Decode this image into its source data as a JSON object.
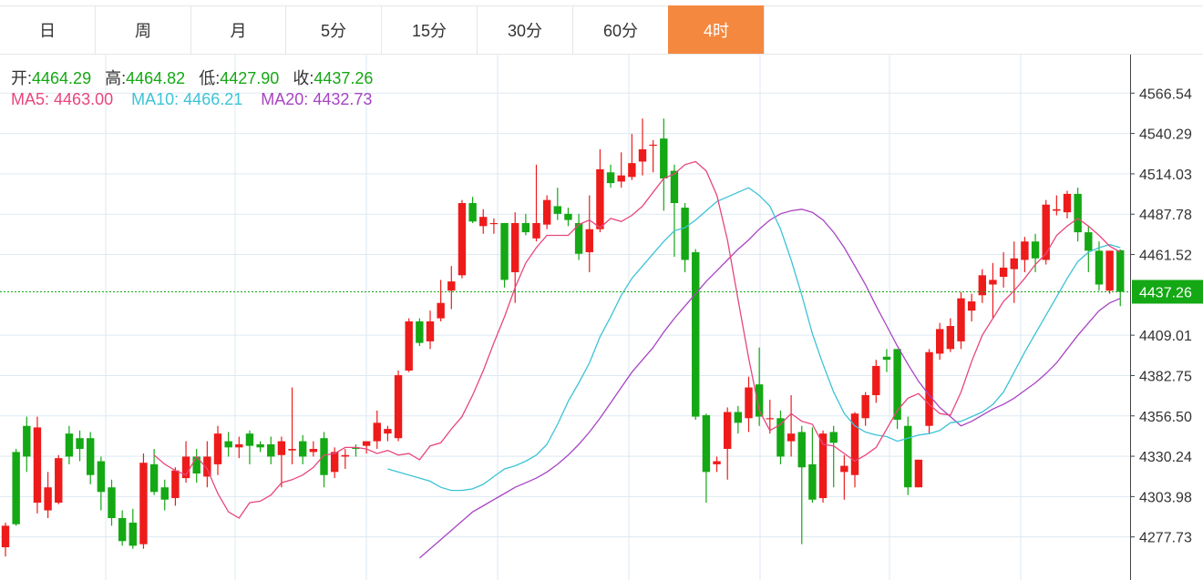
{
  "tabs": [
    {
      "label": "日",
      "active": false
    },
    {
      "label": "周",
      "active": false
    },
    {
      "label": "月",
      "active": false
    },
    {
      "label": "5分",
      "active": false
    },
    {
      "label": "15分",
      "active": false
    },
    {
      "label": "30分",
      "active": false
    },
    {
      "label": "60分",
      "active": false
    },
    {
      "label": "4时",
      "active": true
    }
  ],
  "ohlc_info": {
    "open_label": "开:",
    "open": "4464.29",
    "high_label": "高:",
    "high": "4464.82",
    "low_label": "低:",
    "low": "4427.90",
    "close_label": "收:",
    "close": "4437.26"
  },
  "ma_info": {
    "ma5_label": "MA5:",
    "ma5": "4463.00",
    "ma10_label": "MA10:",
    "ma10": "4466.21",
    "ma20_label": "MA20:",
    "ma20": "4432.73"
  },
  "colors": {
    "up": "#ee1b1b",
    "down": "#14a814",
    "ma5": "#e8467c",
    "ma10": "#3cc3d6",
    "ma20": "#a844c4",
    "accent": "#f4883f",
    "grid": "#dde9f3",
    "last_price": "#14a814"
  },
  "chart_data": {
    "type": "candlestick",
    "y_axis_ticks": [
      "4566.54",
      "4540.29",
      "4514.03",
      "4487.78",
      "4461.52",
      "4409.01",
      "4382.75",
      "4356.50",
      "4330.24",
      "4303.98",
      "4277.73"
    ],
    "last_price_label": "4437.26",
    "ylim": [
      4251.47,
      4592.79
    ],
    "grid": true,
    "candles": [
      [
        4271,
        4285,
        4265,
        4287
      ],
      [
        4333,
        4286,
        4285,
        4335
      ],
      [
        4350,
        4330,
        4320,
        4356
      ],
      [
        4300,
        4349,
        4293,
        4356
      ],
      [
        4295,
        4310,
        4290,
        4320
      ],
      [
        4300,
        4329,
        4299,
        4331
      ],
      [
        4345,
        4330,
        4325,
        4350
      ],
      [
        4342,
        4335,
        4327,
        4347
      ],
      [
        4342,
        4318,
        4312,
        4346
      ],
      [
        4327,
        4307,
        4295,
        4330
      ],
      [
        4310,
        4290,
        4285,
        4315
      ],
      [
        4290,
        4275,
        4272,
        4295
      ],
      [
        4287,
        4272,
        4270,
        4296
      ],
      [
        4273,
        4326,
        4270,
        4332
      ],
      [
        4325,
        4307,
        4305,
        4335
      ],
      [
        4310,
        4302,
        4295,
        4315
      ],
      [
        4303,
        4321,
        4298,
        4323
      ],
      [
        4316,
        4330,
        4313,
        4340
      ],
      [
        4330,
        4319,
        4313,
        4335
      ],
      [
        4317,
        4330,
        4310,
        4340
      ],
      [
        4325,
        4345,
        4318,
        4350
      ],
      [
        4340,
        4336,
        4330,
        4346
      ],
      [
        4336,
        4338,
        4329,
        4343
      ],
      [
        4345,
        4337,
        4325,
        4347
      ],
      [
        4338,
        4336,
        4333,
        4340
      ],
      [
        4338,
        4330,
        4325,
        4343
      ],
      [
        4331,
        4340,
        4310,
        4343
      ],
      [
        4334,
        4335,
        4325,
        4375
      ],
      [
        4340,
        4330,
        4325,
        4344
      ],
      [
        4333,
        4335,
        4330,
        4340
      ],
      [
        4342,
        4318,
        4310,
        4346
      ],
      [
        4320,
        4333,
        4316,
        4336
      ],
      [
        4330,
        4331,
        4322,
        4335
      ],
      [
        4336,
        4335,
        4330,
        4338
      ],
      [
        4337,
        4340,
        4332,
        4340
      ],
      [
        4340,
        4352,
        4335,
        4360
      ],
      [
        4345,
        4348,
        4340,
        4350
      ],
      [
        4342,
        4383,
        4340,
        4386
      ],
      [
        4386,
        4418,
        4385,
        4420
      ],
      [
        4418,
        4404,
        4402,
        4420
      ],
      [
        4405,
        4418,
        4400,
        4425
      ],
      [
        4420,
        4430,
        4418,
        4445
      ],
      [
        4438,
        4444,
        4426,
        4454
      ],
      [
        4448,
        4495,
        4446,
        4497
      ],
      [
        4495,
        4483,
        4482,
        4499
      ],
      [
        4480,
        4486,
        4475,
        4491
      ],
      [
        4482,
        4482,
        4475,
        4485
      ],
      [
        4482,
        4445,
        4440,
        4482
      ],
      [
        4450,
        4482,
        4430,
        4489
      ],
      [
        4482,
        4476,
        4474,
        4488
      ],
      [
        4472,
        4482,
        4470,
        4520
      ],
      [
        4481,
        4497,
        4478,
        4500
      ],
      [
        4493,
        4488,
        4484,
        4505
      ],
      [
        4488,
        4484,
        4480,
        4492
      ],
      [
        4482,
        4462,
        4458,
        4488
      ],
      [
        4463,
        4478,
        4450,
        4500
      ],
      [
        4478,
        4517,
        4476,
        4530
      ],
      [
        4515,
        4508,
        4505,
        4520
      ],
      [
        4509,
        4513,
        4505,
        4528
      ],
      [
        4512,
        4521,
        4510,
        4540
      ],
      [
        4522,
        4530,
        4513,
        4550
      ],
      [
        4533,
        4533,
        4515,
        4536
      ],
      [
        4537,
        4511,
        4490,
        4550
      ],
      [
        4516,
        4495,
        4460,
        4520
      ],
      [
        4492,
        4458,
        4450,
        4495
      ],
      [
        4463,
        4356,
        4354,
        4465
      ],
      [
        4357,
        4320,
        4300,
        4358
      ],
      [
        4325,
        4327,
        4320,
        4330
      ],
      [
        4335,
        4359,
        4315,
        4362
      ],
      [
        4359,
        4352,
        4345,
        4363
      ],
      [
        4355,
        4375,
        4346,
        4382
      ],
      [
        4377,
        4356,
        4350,
        4401
      ],
      [
        4355,
        4355,
        4345,
        4367
      ],
      [
        4355,
        4330,
        4325,
        4360
      ],
      [
        4340,
        4345,
        4330,
        4370
      ],
      [
        4346,
        4323,
        4273,
        4350
      ],
      [
        4325,
        4302,
        4300,
        4349
      ],
      [
        4303,
        4345,
        4300,
        4347
      ],
      [
        4346,
        4339,
        4310,
        4350
      ],
      [
        4320,
        4324,
        4302,
        4331
      ],
      [
        4318,
        4358,
        4310,
        4359
      ],
      [
        4355,
        4370,
        4350,
        4372
      ],
      [
        4370,
        4389,
        4365,
        4393
      ],
      [
        4395,
        4393,
        4385,
        4400
      ],
      [
        4400,
        4354,
        4348,
        4400
      ],
      [
        4350,
        4310,
        4305,
        4356
      ],
      [
        4310,
        4328,
        4310,
        4328
      ],
      [
        4350,
        4398,
        4345,
        4400
      ],
      [
        4397,
        4413,
        4393,
        4417
      ],
      [
        4400,
        4415,
        4398,
        4420
      ],
      [
        4405,
        4433,
        4400,
        4437
      ],
      [
        4425,
        4431,
        4418,
        4436
      ],
      [
        4435,
        4448,
        4430,
        4452
      ],
      [
        4442,
        4445,
        4420,
        4456
      ],
      [
        4447,
        4453,
        4440,
        4463
      ],
      [
        4452,
        4459,
        4430,
        4470
      ],
      [
        4458,
        4470,
        4450,
        4473
      ],
      [
        4470,
        4459,
        4450,
        4475
      ],
      [
        4458,
        4494,
        4455,
        4497
      ],
      [
        4490,
        4491,
        4487,
        4500
      ],
      [
        4489,
        4501,
        4485,
        4503
      ],
      [
        4501,
        4476,
        4470,
        4505
      ],
      [
        4476,
        4464,
        4450,
        4480
      ],
      [
        4464,
        4442,
        4438,
        4470
      ],
      [
        4438,
        4464,
        4436,
        4464
      ],
      [
        4464.29,
        4437.26,
        4427.9,
        4464.82
      ]
    ],
    "ma5": [
      4331,
      4325,
      4321,
      4318,
      4330,
      4322,
      4306,
      4294,
      4290,
      4300,
      4301,
      4305,
      4313,
      4315,
      4318,
      4323,
      4331,
      4332,
      4336,
      4336,
      4335,
      4332,
      4334,
      4331,
      4332,
      4328,
      4337,
      4339,
      4348,
      4356,
      4370,
      4386,
      4404,
      4421,
      4440,
      4456,
      4466,
      4474,
      4474,
      4474,
      4481,
      4484,
      4479,
      4485,
      4483,
      4487,
      4493,
      4502,
      4511,
      4514,
      4520,
      4522,
      4516,
      4500,
      4471,
      4432,
      4394,
      4360,
      4347,
      4351,
      4358,
      4353,
      4351,
      4338,
      4337,
      4332,
      4327,
      4331,
      4336,
      4348,
      4360,
      4368,
      4371,
      4364,
      4358,
      4357,
      4372,
      4392,
      4409,
      4420,
      4431,
      4438,
      4446,
      4455,
      4462,
      4474,
      4480,
      4485,
      4480,
      4474,
      4467,
      4463
    ],
    "ma10": [
      4322,
      4320,
      4318,
      4316,
      4314,
      4310,
      4308,
      4308,
      4309,
      4312,
      4317,
      4322,
      4324,
      4327,
      4331,
      4338,
      4351,
      4366,
      4378,
      4391,
      4408,
      4421,
      4435,
      4446,
      4454,
      4462,
      4470,
      4477,
      4479,
      4484,
      4490,
      4496,
      4499,
      4502,
      4505,
      4500,
      4493,
      4478,
      4458,
      4435,
      4410,
      4390,
      4372,
      4358,
      4350,
      4346,
      4344,
      4343,
      4340,
      4342,
      4344,
      4345,
      4347,
      4352,
      4353,
      4356,
      4359,
      4364,
      4372,
      4385,
      4398,
      4410,
      4422,
      4434,
      4446,
      4457,
      4463,
      4466,
      4468,
      4466
    ],
    "ma20": [
      4264,
      4270,
      4276,
      4282,
      4288,
      4294,
      4298,
      4302,
      4306,
      4310,
      4313,
      4316,
      4320,
      4325,
      4331,
      4338,
      4346,
      4355,
      4365,
      4375,
      4385,
      4393,
      4401,
      4411,
      4420,
      4428,
      4436,
      4444,
      4451,
      4458,
      4465,
      4471,
      4478,
      4484,
      4488,
      4490,
      4491,
      4489,
      4484,
      4476,
      4466,
      4454,
      4442,
      4428,
      4415,
      4402,
      4390,
      4379,
      4370,
      4362,
      4356,
      4350,
      4353,
      4357,
      4361,
      4364,
      4368,
      4373,
      4378,
      4384,
      4391,
      4400,
      4409,
      4417,
      4425,
      4430,
      4433
    ]
  }
}
